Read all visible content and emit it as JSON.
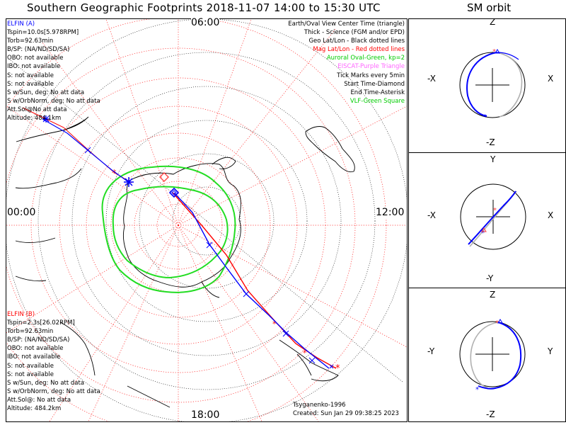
{
  "title": "Southern Geographic Footprints 2018-11-07 14:00 to 15:30 UTC",
  "sm_title": "SM orbit",
  "time_labels": {
    "top": "06:00",
    "left": "00:00",
    "right": "12:00",
    "bottom": "18:00"
  },
  "elfin_a": {
    "lines": [
      "ELFIN (A)",
      "Tspin=10.0s[5.978RPM]",
      "Torb=92.63min",
      "B/SP: (NA/ND/SD/SA)",
      "OBO: not available",
      "IBO: not available",
      "S: not available",
      "S: not available",
      "S w/Sun, deg: No att data",
      "S w/OrbNorm, deg: No att data",
      "Att.Sol@No att data",
      "Altitude: 484.1km"
    ]
  },
  "elfin_b": {
    "lines": [
      "ELFIN (B)",
      "Tspin=2.3s[26.02RPM]",
      "Torb=92.63min",
      "B/SP: (NA/ND/SD/SA)",
      "OBO: not available",
      "IBO: not available",
      "S: not available",
      "S: not available",
      "S w/Sun, deg: No att data",
      "S w/OrbNorm, deg: No att data",
      "Att.Sol@: No att data",
      "Altitude: 484.2km"
    ]
  },
  "legend": [
    {
      "text": "Earth/Oval View Center Time (triangle)",
      "color": "#000000"
    },
    {
      "text": "Thick - Science (FGM and/or EPD)",
      "color": "#000000"
    },
    {
      "text": "Geo Lat/Lon - Black dotted lines",
      "color": "#000000"
    },
    {
      "text": "Mag Lat/Lon - Red dotted lines",
      "color": "#ff0000"
    },
    {
      "text": "Auroral Oval-Green, kp=2",
      "color": "#00cc00"
    },
    {
      "text": "EISCAT-Purple Triangle",
      "color": "#ff66ff"
    },
    {
      "text": "Tick Marks every 5min",
      "color": "#000000"
    },
    {
      "text": "Start Time-Diamond",
      "color": "#000000"
    },
    {
      "text": "End Time-Asterisk",
      "color": "#000000"
    },
    {
      "text": "VLF-Green Square",
      "color": "#00cc00"
    }
  ],
  "footer": {
    "model": "Tsyganenko-1996",
    "created": "Created: Sun Jan 29 09:38:25 2023"
  },
  "sm_panels": [
    {
      "top": "Z",
      "bottom": "-Z",
      "left": "-X",
      "right": "X"
    },
    {
      "top": "Y",
      "bottom": "-Y",
      "left": "-X",
      "right": "X"
    },
    {
      "top": "Z",
      "bottom": "-Z",
      "left": "-Y",
      "right": "Y"
    }
  ],
  "colors": {
    "elfin_a": "#0000ff",
    "elfin_b": "#ff0000",
    "oval": "#00cc00",
    "mag_grid": "#ff0000",
    "geo_grid": "#000000"
  }
}
